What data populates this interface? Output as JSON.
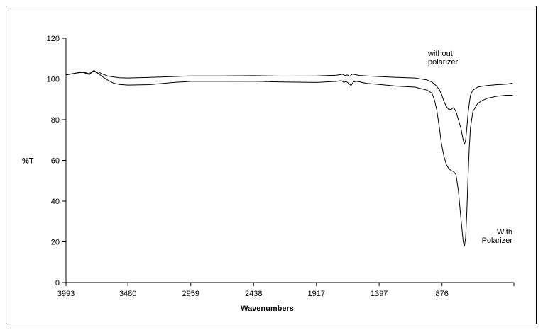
{
  "chart_data": {
    "type": "line",
    "title": "",
    "xlabel": "Wavenumbers",
    "ylabel": "%T",
    "xlim": [
      3993,
      280
    ],
    "ylim": [
      0,
      120
    ],
    "x_reversed": true,
    "xticks": [
      3993,
      3480,
      2959,
      2438,
      1917,
      1397,
      876
    ],
    "yticks": [
      0,
      20,
      40,
      60,
      80,
      100,
      120
    ],
    "grid": false,
    "legend": "none",
    "series": [
      {
        "name": "without polarizer",
        "annotation": [
          "without",
          "polarizer"
        ],
        "x": [
          3993,
          3900,
          3850,
          3800,
          3780,
          3760,
          3740,
          3720,
          3700,
          3650,
          3600,
          3550,
          3480,
          3300,
          3100,
          2959,
          2700,
          2438,
          2200,
          1917,
          1750,
          1700,
          1680,
          1660,
          1640,
          1620,
          1600,
          1560,
          1500,
          1397,
          1250,
          1100,
          1000,
          960,
          930,
          900,
          880,
          860,
          840,
          820,
          800,
          780,
          760,
          740,
          720,
          700,
          690,
          680,
          670,
          660,
          650,
          640,
          620,
          580,
          540,
          500,
          460,
          420,
          380,
          340,
          300,
          290
        ],
        "y": [
          102,
          103,
          103.5,
          102.5,
          103.5,
          104.2,
          103.2,
          103.5,
          102.6,
          101.5,
          101,
          100.6,
          100.5,
          100.8,
          101.2,
          101.5,
          101.5,
          101.6,
          101.4,
          101.5,
          101.8,
          102.3,
          101.6,
          102,
          101.3,
          102.4,
          102.2,
          101.7,
          101.5,
          101.2,
          100.8,
          100.5,
          99.5,
          98.5,
          97,
          95,
          92.5,
          89,
          86.5,
          85,
          85,
          86,
          84,
          80,
          76,
          70,
          68,
          70,
          76,
          83,
          88,
          92,
          94.5,
          96,
          96.5,
          96.8,
          97,
          97.2,
          97.3,
          97.5,
          97.8,
          98
        ]
      },
      {
        "name": "With Polarizer",
        "annotation": [
          "With",
          "Polarizer"
        ],
        "x": [
          3993,
          3900,
          3850,
          3800,
          3780,
          3760,
          3740,
          3720,
          3700,
          3650,
          3600,
          3550,
          3480,
          3300,
          3100,
          2959,
          2700,
          2438,
          2200,
          1917,
          1750,
          1710,
          1690,
          1670,
          1650,
          1630,
          1610,
          1580,
          1500,
          1397,
          1250,
          1100,
          1000,
          960,
          940,
          920,
          900,
          880,
          860,
          840,
          820,
          800,
          780,
          760,
          740,
          720,
          700,
          690,
          680,
          670,
          660,
          650,
          640,
          620,
          580,
          540,
          500,
          460,
          420,
          380,
          340,
          300,
          290
        ],
        "y": [
          102,
          103,
          103.2,
          102.2,
          103.2,
          104,
          103,
          102.6,
          101.5,
          99.5,
          98,
          97.3,
          97,
          97.2,
          98.3,
          98.8,
          98.8,
          98.9,
          98.5,
          98.3,
          98.8,
          99.2,
          98.3,
          98.8,
          97.8,
          96.8,
          98.6,
          98.8,
          97.8,
          97.3,
          96.5,
          96,
          94.5,
          93,
          90,
          85,
          77,
          68,
          62,
          58,
          56,
          55,
          54.5,
          53,
          45,
          32,
          20,
          18,
          22,
          35,
          52,
          66,
          76,
          84,
          88,
          89.5,
          90.5,
          91,
          91.5,
          91.8,
          92,
          92,
          92
        ]
      }
    ]
  }
}
